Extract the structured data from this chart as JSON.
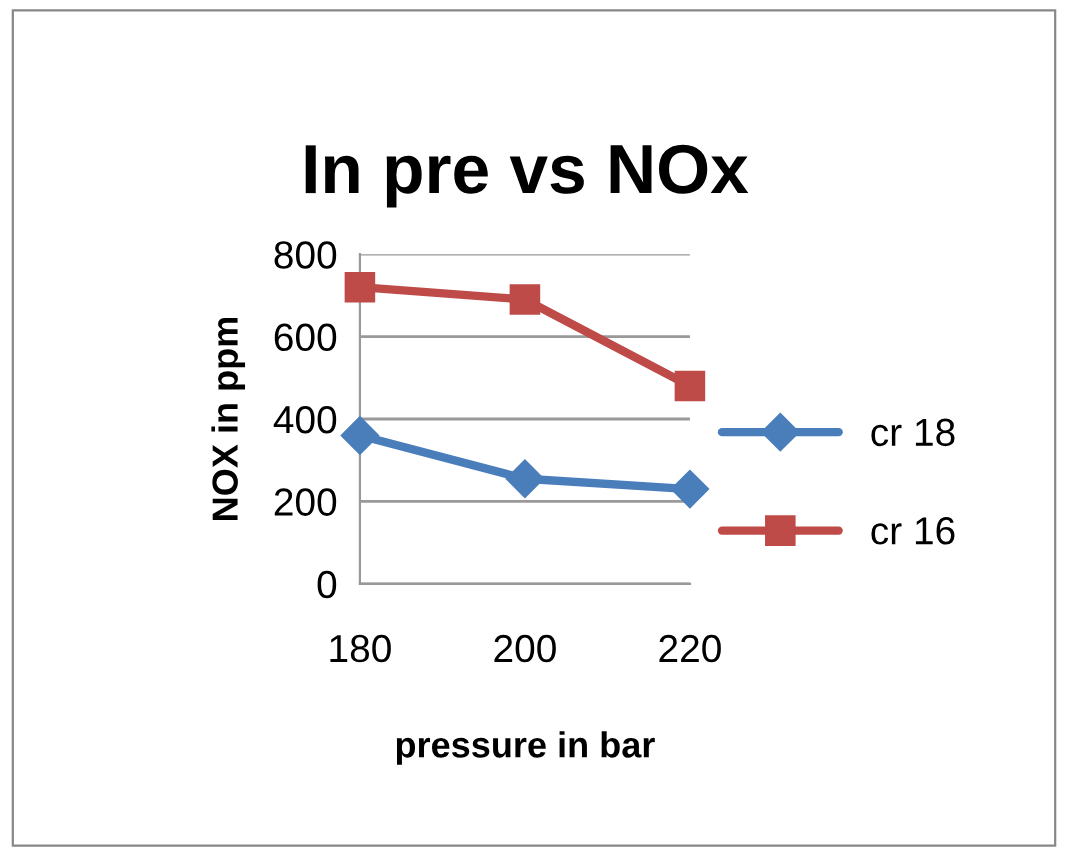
{
  "chart_data": {
    "type": "line",
    "title": "In pre vs NOx",
    "xlabel": "pressure in bar",
    "ylabel": "NOX in ppm",
    "categories": [
      "180",
      "200",
      "220"
    ],
    "series": [
      {
        "name": "cr 18",
        "color": "#4a7ebb",
        "values": [
          360,
          255,
          230
        ],
        "marker": "diamond"
      },
      {
        "name": "cr 16",
        "color": "#be4b48",
        "values": [
          720,
          690,
          480
        ],
        "marker": "square"
      }
    ],
    "ylim": [
      0,
      800
    ],
    "yticks": [
      0,
      200,
      400,
      600,
      800
    ],
    "grid": "y",
    "legend": "right",
    "line_style": "solid"
  }
}
